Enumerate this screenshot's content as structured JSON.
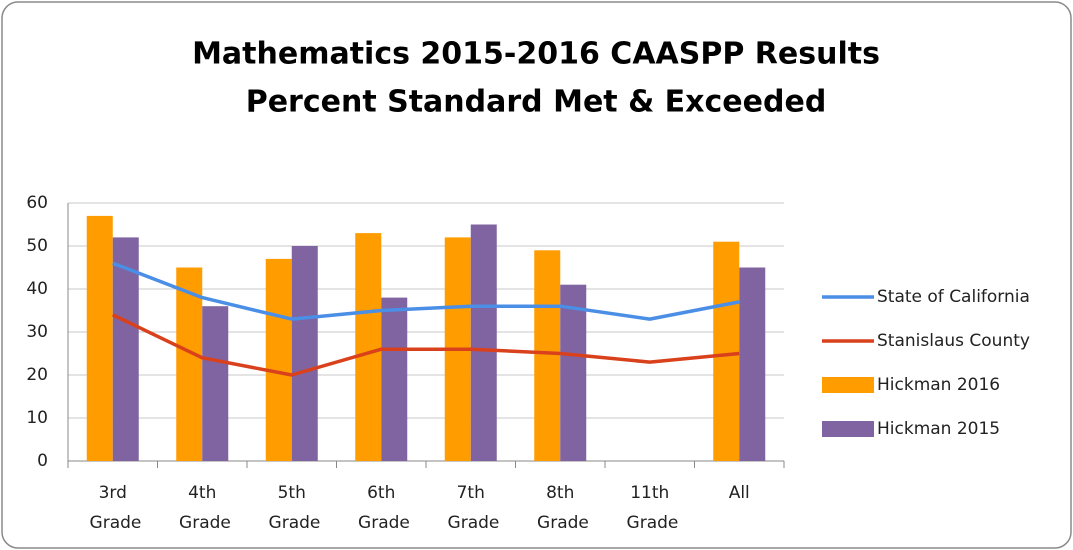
{
  "chart_data": {
    "type": "bar",
    "title": "Mathematics 2015-2016 CAASPP Results",
    "subtitle": "Percent Standard Met & Exceeded",
    "categories": [
      "3rd Grade",
      "4th Grade",
      "5th Grade",
      "6th Grade",
      "7th Grade",
      "8th Grade",
      "11th Grade",
      "All"
    ],
    "series": [
      {
        "name": "State of California",
        "type": "line",
        "color": "#4a8ee6",
        "values": [
          46,
          38,
          33,
          35,
          36,
          36,
          33,
          37
        ]
      },
      {
        "name": "Stanislaus County",
        "type": "line",
        "color": "#d9411c",
        "values": [
          34,
          24,
          20,
          26,
          26,
          25,
          23,
          25
        ]
      },
      {
        "name": "Hickman 2016",
        "type": "bar",
        "color": "#ff9c00",
        "values": [
          57,
          45,
          47,
          53,
          52,
          49,
          null,
          51
        ]
      },
      {
        "name": "Hickman 2015",
        "type": "bar",
        "color": "#8063a1",
        "values": [
          52,
          36,
          50,
          38,
          55,
          41,
          null,
          45
        ]
      }
    ],
    "ylim": [
      0,
      60
    ],
    "yticks": [
      0,
      10,
      20,
      30,
      40,
      50,
      60
    ],
    "grid": true,
    "legend": "right"
  }
}
